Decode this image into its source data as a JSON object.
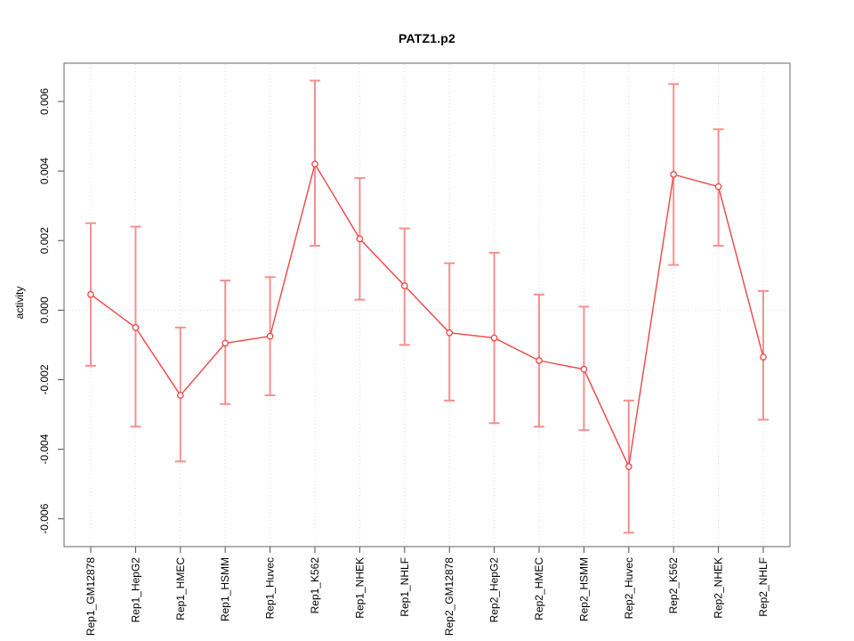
{
  "figure": {
    "background": "#ffffff"
  },
  "chart_data": {
    "type": "line",
    "title": "PATZ1.p2",
    "ylabel": "activity",
    "xlabel": "",
    "legend": "none",
    "grid": "dotted vertical gridline at each category and dotted horizontal line at y=0",
    "categories": [
      "Rep1_GM12878",
      "Rep1_HepG2",
      "Rep1_HMEC",
      "Rep1_HSMM",
      "Rep1_Huvec",
      "Rep1_K562",
      "Rep1_NHEK",
      "Rep1_NHLF",
      "Rep2_GM12878",
      "Rep2_HepG2",
      "Rep2_HMEC",
      "Rep2_HSMM",
      "Rep2_Huvec",
      "Rep2_K562",
      "Rep2_NHEK",
      "Rep2_NHLF"
    ],
    "series": [
      {
        "name": "activity",
        "values": [
          0.00045,
          -0.0005,
          -0.00245,
          -0.00095,
          -0.00075,
          0.0042,
          0.00205,
          0.0007,
          -0.00065,
          -0.0008,
          -0.00145,
          -0.0017,
          -0.0045,
          0.0039,
          0.00355,
          -0.00135
        ],
        "error_high": [
          0.0025,
          0.0024,
          -0.0005,
          0.00085,
          0.00095,
          0.0066,
          0.0038,
          0.00235,
          0.00135,
          0.00165,
          0.00045,
          0.0001,
          -0.0026,
          0.0065,
          0.0052,
          0.00055
        ],
        "error_low": [
          -0.0016,
          -0.00335,
          -0.00435,
          -0.0027,
          -0.00245,
          0.00185,
          0.0003,
          -0.001,
          -0.0026,
          -0.00325,
          -0.00335,
          -0.00345,
          -0.0064,
          0.0013,
          0.00185,
          -0.00315
        ]
      }
    ],
    "yticks": [
      -0.006,
      -0.004,
      -0.002,
      0.0,
      0.002,
      0.004,
      0.006
    ],
    "ytick_labels": [
      "-0.006",
      "-0.004",
      "-0.002",
      "0.000",
      "0.002",
      "0.004",
      "0.006"
    ],
    "ylim": [
      -0.0068,
      0.0071
    ],
    "marker": "open-circle",
    "colors": {
      "line": "#ef4444",
      "error_bar": "#f59090",
      "marker_fill": "#ffffff",
      "grid": "#d9d9d9",
      "box": "#7f7f7f",
      "tick": "#4d4d4d",
      "text": "#000000"
    }
  }
}
